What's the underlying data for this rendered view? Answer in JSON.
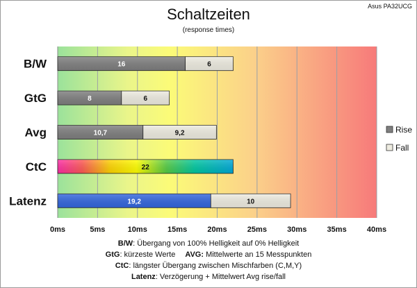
{
  "chart_data": {
    "type": "bar",
    "orientation": "horizontal",
    "stacked": true,
    "title": "Schaltzeiten",
    "subtitle": "(response times)",
    "model": "Asus PA32UCG",
    "categories": [
      "B/W",
      "GtG",
      "Avg",
      "CtC",
      "Latenz"
    ],
    "series": [
      {
        "name": "Rise",
        "values": [
          16,
          8,
          10.7,
          null,
          null
        ],
        "labels": [
          "16",
          "8",
          "10,7",
          "",
          ""
        ]
      },
      {
        "name": "Fall",
        "values": [
          6,
          6,
          9.2,
          null,
          10
        ],
        "labels": [
          "6",
          "6",
          "9,2",
          "",
          "10"
        ]
      },
      {
        "name": "",
        "values": [
          null,
          null,
          null,
          22,
          null
        ],
        "labels": [
          "",
          "",
          "",
          "22",
          ""
        ]
      },
      {
        "name": "",
        "values": [
          null,
          null,
          null,
          null,
          19.2
        ],
        "labels": [
          "",
          "",
          "",
          "",
          "19,2"
        ]
      }
    ],
    "xlim": [
      0,
      40
    ],
    "xticks": [
      "0ms",
      "5ms",
      "10ms",
      "15ms",
      "20ms",
      "25ms",
      "30ms",
      "35ms",
      "40ms"
    ],
    "grid": "vertical",
    "legend_position": "right",
    "colors": {
      "rise": "#7f7f7f",
      "fall": "#eeece1",
      "latency": "#3366dd"
    }
  },
  "notes": [
    {
      "key": "B/W",
      "text": ":  Übergang von 100% Helligkeit auf 0% Helligkeit"
    },
    {
      "key": "GtG",
      "text": ": kürzeste  Werte",
      "key2": "AVG:",
      "text2": " Mittelwerte  an 15 Messpunkten"
    },
    {
      "key": "CtC",
      "text": ": längster Übergang  zwischen Mischfarben (C,M,Y)"
    },
    {
      "key": "Latenz",
      "text": ": Verzögerung  + Mittelwert  Avg rise/fall"
    }
  ]
}
